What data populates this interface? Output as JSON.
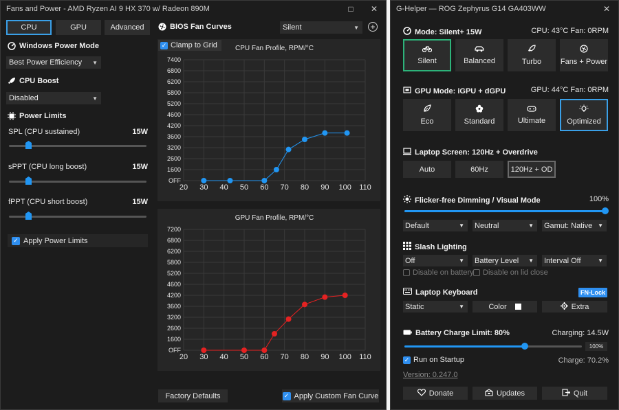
{
  "fans": {
    "window_title": "Fans and Power - AMD Ryzen AI 9 HX 370 w/ Radeon 890M",
    "tabs": [
      {
        "label": "CPU"
      },
      {
        "label": "GPU"
      },
      {
        "label": "Advanced"
      }
    ],
    "power_mode": {
      "title": "Windows Power Mode",
      "value": "Best Power Efficiency"
    },
    "cpu_boost": {
      "title": "CPU Boost",
      "value": "Disabled"
    },
    "power_limits": {
      "title": "Power Limits",
      "sliders": [
        {
          "label": "SPL (CPU sustained)",
          "value": "15W",
          "fraction": 0.14
        },
        {
          "label": "sPPT (CPU long boost)",
          "value": "15W",
          "fraction": 0.14
        },
        {
          "label": "fPPT (CPU short boost)",
          "value": "15W",
          "fraction": 0.14
        }
      ],
      "apply_label": "Apply Power Limits"
    },
    "bios_title": "BIOS Fan Curves",
    "profile_select": "Silent",
    "clamp_label": "Clamp to Grid",
    "factory_label": "Factory Defaults",
    "apply_curve_label": "Apply Custom Fan Curve",
    "colors": {
      "cpu_series": "#2196f3",
      "gpu_series": "#e52222",
      "accent": "#3aa0e8"
    }
  },
  "chart_data": [
    {
      "type": "line",
      "title": "CPU Fan Profile, RPM/°C",
      "x": [
        30,
        43,
        60,
        66,
        72,
        80,
        90,
        101
      ],
      "y": [
        0,
        0,
        0,
        1600,
        3100,
        3500,
        3800,
        3800
      ],
      "xlim": [
        20,
        110
      ],
      "ylim": [
        0,
        7400
      ],
      "xticks": [
        "20",
        "30",
        "40",
        "50",
        "60",
        "70",
        "80",
        "90",
        "100",
        "110"
      ],
      "yticks": [
        "OFF",
        "1600",
        "2600",
        "3200",
        "3600",
        "4200",
        "4600",
        "5200",
        "5800",
        "6200",
        "6800",
        "7400"
      ],
      "ytick_values": [
        0,
        1600,
        2600,
        3200,
        3600,
        4200,
        4600,
        5200,
        5800,
        6200,
        6800,
        7400
      ],
      "grid": true
    },
    {
      "type": "line",
      "title": "GPU Fan Profile, RPM/°C",
      "x": [
        30,
        50,
        60,
        65,
        72,
        80,
        90,
        100
      ],
      "y": [
        0,
        0,
        0,
        2100,
        3100,
        3700,
        4100,
        4200
      ],
      "xlim": [
        20,
        110
      ],
      "ylim": [
        0,
        7200
      ],
      "xticks": [
        "20",
        "30",
        "40",
        "50",
        "60",
        "70",
        "80",
        "90",
        "100",
        "110"
      ],
      "yticks": [
        "OFF",
        "1600",
        "2600",
        "3200",
        "3600",
        "4200",
        "4600",
        "5200",
        "5800",
        "6200",
        "6800",
        "7200"
      ],
      "ytick_values": [
        0,
        1600,
        2600,
        3200,
        3600,
        4200,
        4600,
        5200,
        5800,
        6200,
        6800,
        7200
      ],
      "grid": true
    }
  ],
  "ghelper": {
    "window_title": "G-Helper — ROG Zephyrus G14 GA403WW",
    "mode": {
      "title": "Mode: Silent+ 15W",
      "status": "CPU: 43°C Fan: 0RPM",
      "buttons": [
        {
          "label": "Silent",
          "icon": "bicycle-icon"
        },
        {
          "label": "Balanced",
          "icon": "car-icon"
        },
        {
          "label": "Turbo",
          "icon": "rocket-icon"
        },
        {
          "label": "Fans + Power",
          "icon": "fan-icon"
        }
      ]
    },
    "gpu": {
      "title": "GPU Mode: iGPU + dGPU",
      "status": "GPU: 44°C Fan: 0RPM",
      "buttons": [
        {
          "label": "Eco",
          "icon": "leaf-icon"
        },
        {
          "label": "Standard",
          "icon": "flower-icon"
        },
        {
          "label": "Ultimate",
          "icon": "gamepad-icon"
        },
        {
          "label": "Optimized",
          "icon": "sparkle-bulb-icon"
        }
      ]
    },
    "screen": {
      "title": "Laptop Screen: 120Hz + Overdrive",
      "buttons": [
        {
          "label": "Auto"
        },
        {
          "label": "60Hz"
        },
        {
          "label": "120Hz + OD"
        }
      ]
    },
    "dimming": {
      "title": "Flicker-free Dimming / Visual Mode",
      "value": "100%",
      "fraction": 1.0,
      "dropdowns": [
        {
          "value": "Default"
        },
        {
          "value": "Neutral"
        },
        {
          "value": "Gamut: Native"
        }
      ]
    },
    "slash": {
      "title": "Slash Lighting",
      "dropdowns": [
        {
          "value": "Off"
        },
        {
          "value": "Battery Level"
        },
        {
          "value": "Interval Off"
        }
      ],
      "check_battery": "Disable on battery",
      "check_lid": "Disable on lid close"
    },
    "keyboard": {
      "title": "Laptop Keyboard",
      "fn_lock": "FN-Lock",
      "mode": "Static",
      "color_label": "Color",
      "extra_label": "Extra"
    },
    "battery": {
      "title": "Battery Charge Limit: 80%",
      "charging": "Charging: 14.5W",
      "slider_value": "100%",
      "fraction": 0.68,
      "run_startup": "Run on Startup",
      "charge": "Charge: 70.2%",
      "version": "Version: 0.247.0"
    },
    "footer": {
      "donate": "Donate",
      "updates": "Updates",
      "quit": "Quit"
    }
  }
}
